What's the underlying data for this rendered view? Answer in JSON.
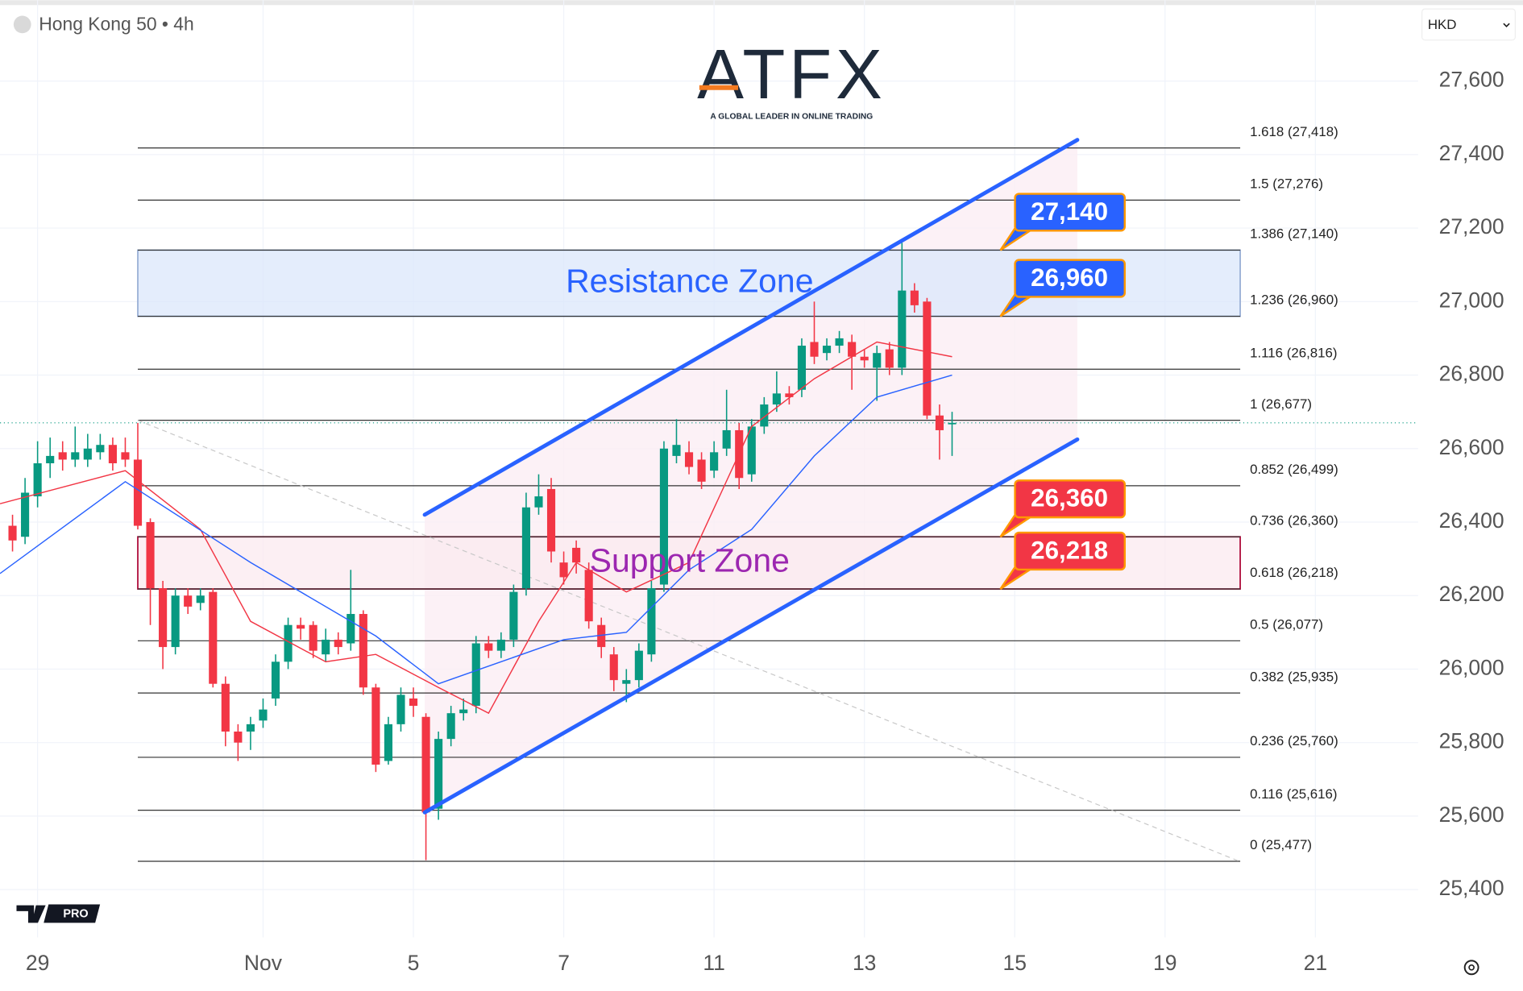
{
  "chart_data": {
    "type": "candlestick",
    "title": "Hong Kong 50 • 4h",
    "currency": "HKD",
    "up_color": "#089981",
    "down_color": "#f23645",
    "grid": true,
    "xlim": [
      -1,
      112.2
    ],
    "ylim": [
      25270,
      27820
    ],
    "yticks": [
      {
        "value": 25400,
        "label": "25,400"
      },
      {
        "value": 25600,
        "label": "25,600"
      },
      {
        "value": 25800,
        "label": "25,800"
      },
      {
        "value": 26000,
        "label": "26,000"
      },
      {
        "value": 26200,
        "label": "26,200"
      },
      {
        "value": 26400,
        "label": "26,400"
      },
      {
        "value": 26600,
        "label": "26,600"
      },
      {
        "value": 26800,
        "label": "26,800"
      },
      {
        "value": 27000,
        "label": "27,000"
      },
      {
        "value": 27200,
        "label": "27,200"
      },
      {
        "value": 27400,
        "label": "27,400"
      },
      {
        "value": 27600,
        "label": "27,600"
      }
    ],
    "xticks": [
      {
        "value": 2,
        "label": "29"
      },
      {
        "value": 20,
        "label": "Nov"
      },
      {
        "value": 32,
        "label": "5"
      },
      {
        "value": 44,
        "label": "7"
      },
      {
        "value": 56,
        "label": "11"
      },
      {
        "value": 68,
        "label": "13"
      },
      {
        "value": 80,
        "label": "15"
      },
      {
        "value": 92,
        "label": "19"
      },
      {
        "value": 104,
        "label": "21"
      }
    ],
    "open": [
      26390,
      26360,
      26470,
      26560,
      26590,
      26570,
      26570,
      26590,
      26610,
      26590,
      26570,
      26400,
      26220,
      26060,
      26200,
      26180,
      26210,
      25960,
      25830,
      25830,
      25860,
      25920,
      26020,
      26120,
      26120,
      26040,
      26080,
      26070,
      26150,
      25950,
      25750,
      25850,
      25920,
      25870,
      25620,
      25810,
      25880,
      25900,
      26070,
      26050,
      26080,
      26220,
      26440,
      26490,
      26290,
      26330,
      26270,
      26120,
      26040,
      25960,
      25970,
      26040,
      26230,
      26580,
      26590,
      26570,
      26540,
      26600,
      26650,
      26530,
      26660,
      26720,
      26750,
      26760,
      26890,
      26860,
      26880,
      26890,
      26850,
      26820,
      26870,
      26820,
      27030,
      27000,
      26690,
      26670
    ],
    "high": [
      26420,
      26520,
      26620,
      26630,
      26620,
      26660,
      26640,
      26640,
      26630,
      26630,
      26670,
      26410,
      26240,
      26220,
      26220,
      26220,
      26220,
      25980,
      25850,
      25870,
      25920,
      26040,
      26140,
      26140,
      26130,
      26110,
      26100,
      26270,
      26160,
      25960,
      25870,
      25950,
      25950,
      25880,
      25830,
      25900,
      25920,
      26090,
      26090,
      26100,
      26230,
      26480,
      26530,
      26520,
      26320,
      26350,
      26290,
      26140,
      26060,
      26000,
      26070,
      26240,
      26620,
      26680,
      26620,
      26590,
      26620,
      26760,
      26670,
      26680,
      26740,
      26810,
      26770,
      26900,
      27000,
      26900,
      26920,
      26910,
      26870,
      26880,
      26890,
      27160,
      27050,
      27010,
      26720,
      26700
    ],
    "low": [
      26320,
      26340,
      26440,
      26520,
      26540,
      26550,
      26550,
      26570,
      26540,
      26550,
      26380,
      26120,
      26000,
      26040,
      26150,
      26160,
      25950,
      25790,
      25750,
      25780,
      25840,
      25900,
      26000,
      26080,
      26030,
      26020,
      26040,
      26050,
      25930,
      25720,
      25740,
      25830,
      25870,
      25480,
      25590,
      25790,
      25860,
      25880,
      26030,
      26030,
      26060,
      26200,
      26420,
      26290,
      26230,
      26260,
      26110,
      26030,
      25940,
      25910,
      25950,
      26020,
      26210,
      26560,
      26530,
      26490,
      26520,
      26580,
      26490,
      26510,
      26640,
      26700,
      26720,
      26740,
      26830,
      26840,
      26860,
      26760,
      26820,
      26730,
      26800,
      26800,
      26970,
      26680,
      26570,
      26580
    ],
    "close": [
      26350,
      26480,
      26560,
      26580,
      26570,
      26590,
      26600,
      26610,
      26560,
      26570,
      26390,
      26220,
      26060,
      26200,
      26170,
      26200,
      25960,
      25830,
      25800,
      25850,
      25890,
      26020,
      26120,
      26110,
      26050,
      26080,
      26060,
      26150,
      25950,
      25740,
      25850,
      25930,
      25900,
      25610,
      25810,
      25880,
      25890,
      26070,
      26050,
      26080,
      26210,
      26440,
      26470,
      26320,
      26250,
      26290,
      26130,
      26060,
      25970,
      25970,
      26050,
      26220,
      26600,
      26610,
      26550,
      26510,
      26590,
      26650,
      26520,
      26660,
      26720,
      26750,
      26740,
      26880,
      26850,
      26880,
      26900,
      26850,
      26840,
      26860,
      26820,
      27030,
      26990,
      26690,
      26650,
      26670
    ],
    "moving_averages": [
      {
        "color": "#f23645",
        "x": [
          -1,
          9,
          15,
          19,
          25,
          29,
          34,
          38,
          42,
          45,
          49,
          54,
          59,
          64,
          69,
          75
        ],
        "values": [
          26450,
          26540,
          26380,
          26130,
          26020,
          26040,
          25950,
          25880,
          26130,
          26290,
          26210,
          26290,
          26660,
          26790,
          26890,
          26850
        ]
      },
      {
        "color": "#2962ff",
        "x": [
          -1,
          9,
          19,
          29,
          34,
          39,
          44,
          49,
          54,
          59,
          64,
          69,
          75
        ],
        "values": [
          26260,
          26510,
          26290,
          26090,
          25960,
          26020,
          26080,
          26100,
          26270,
          26380,
          26580,
          26740,
          26800
        ]
      }
    ],
    "channel": {
      "color": "#2962ff",
      "upper": {
        "x": [
          32.9,
          85
        ],
        "values": [
          26420,
          27440
        ]
      },
      "lower": {
        "x": [
          32.9,
          85
        ],
        "values": [
          25610,
          26625
        ]
      }
    },
    "trend_line": {
      "x": [
        10,
        98
      ],
      "values": [
        26677,
        25476
      ]
    },
    "fib_x": [
      10,
      98
    ],
    "fib_levels": [
      {
        "value": 27418,
        "label": "1.618 (27,418)"
      },
      {
        "value": 27276,
        "label": "1.5 (27,276)"
      },
      {
        "value": 27140,
        "label": "1.386 (27,140)"
      },
      {
        "value": 26960,
        "label": "1.236 (26,960)"
      },
      {
        "value": 26816,
        "label": "1.116 (26,816)"
      },
      {
        "value": 26677,
        "label": "1 (26,677)"
      },
      {
        "value": 26499,
        "label": "0.852 (26,499)"
      },
      {
        "value": 26360,
        "label": "0.736 (26,360)"
      },
      {
        "value": 26218,
        "label": "0.618 (26,218)"
      },
      {
        "value": 26077,
        "label": "0.5 (26,077)"
      },
      {
        "value": 25935,
        "label": "0.382 (25,935)"
      },
      {
        "value": 25760,
        "label": "0.236 (25,760)"
      },
      {
        "value": 25616,
        "label": "0.116 (25,616)"
      },
      {
        "value": 25477,
        "label": "0 (25,477)"
      }
    ],
    "zones": [
      {
        "name": "Resistance Zone",
        "low": 26960,
        "high": 27140,
        "fill": "#dbe7fb",
        "border": "#9bb0d6",
        "text_color": "#2962ff"
      },
      {
        "name": "Support Zone",
        "low": 26218,
        "high": 26360,
        "fill": "#fbe9ef",
        "border": "#b0103f",
        "text_color": "#9c27b0"
      }
    ],
    "price_labels": [
      {
        "value": 27140,
        "label": "27,140",
        "color": "#2962ff"
      },
      {
        "value": 26960,
        "label": "26,960",
        "color": "#2962ff"
      },
      {
        "value": 26360,
        "label": "26,360",
        "color": "#f23645"
      },
      {
        "value": 26218,
        "label": "26,218",
        "color": "#f23645"
      }
    ]
  },
  "brand": {
    "logo": "ATFX",
    "tagline": "A GLOBAL LEADER IN ONLINE TRADING",
    "badge": "PRO"
  }
}
